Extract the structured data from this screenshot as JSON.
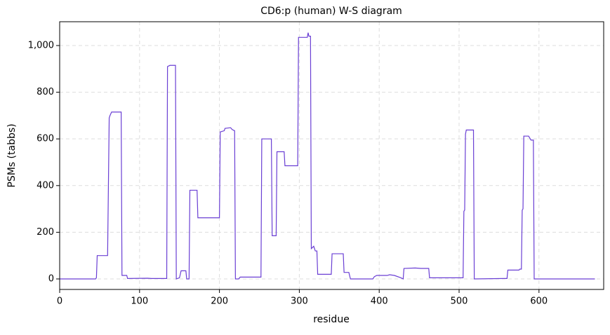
{
  "chart_data": {
    "type": "line",
    "title": "CD6:p (human) W-S diagram",
    "xlabel": "residue",
    "ylabel": "PSMs (tabbs)",
    "color": "#6a3fd4",
    "x": [
      0,
      45,
      46,
      47,
      60,
      62,
      63,
      65,
      77,
      78,
      84,
      85,
      110,
      115,
      134,
      135,
      138,
      145,
      146,
      150,
      152,
      158,
      159,
      162,
      163,
      172,
      173,
      200,
      201,
      206,
      207,
      214,
      216,
      219,
      220,
      224,
      226,
      252,
      253,
      265,
      266,
      271,
      272,
      281,
      282,
      298,
      299,
      310,
      311,
      312,
      314,
      315,
      318,
      320,
      322,
      323,
      340,
      341,
      355,
      356,
      362,
      364,
      392,
      394,
      397,
      410,
      413,
      419,
      427,
      430,
      431,
      445,
      452,
      462,
      463,
      478,
      505,
      506,
      507,
      508,
      509,
      518,
      519,
      555,
      560,
      561,
      575,
      576,
      578,
      579,
      580,
      581,
      587,
      590,
      593,
      594,
      670
    ],
    "values": [
      0,
      0,
      5,
      100,
      100,
      690,
      700,
      715,
      715,
      15,
      15,
      2,
      3,
      2,
      2,
      910,
      915,
      915,
      0,
      5,
      35,
      35,
      0,
      0,
      380,
      380,
      262,
      262,
      630,
      635,
      645,
      648,
      640,
      635,
      0,
      0,
      8,
      8,
      600,
      600,
      185,
      185,
      545,
      545,
      485,
      485,
      1035,
      1035,
      1055,
      1040,
      1040,
      130,
      140,
      120,
      120,
      20,
      20,
      108,
      108,
      28,
      28,
      0,
      0,
      10,
      15,
      15,
      18,
      15,
      5,
      0,
      45,
      47,
      45,
      45,
      5,
      5,
      5,
      290,
      295,
      620,
      638,
      638,
      0,
      2,
      2,
      38,
      38,
      42,
      42,
      295,
      300,
      612,
      612,
      595,
      595,
      0,
      0
    ],
    "xlim": [
      0,
      681
    ],
    "ylim": [
      -45,
      1102
    ],
    "xticks": [
      0,
      100,
      200,
      300,
      400,
      500,
      600
    ],
    "yticks": [
      0,
      200,
      400,
      600,
      800,
      {
        "value": 1000,
        "label": "1,000"
      }
    ],
    "grid": true
  }
}
